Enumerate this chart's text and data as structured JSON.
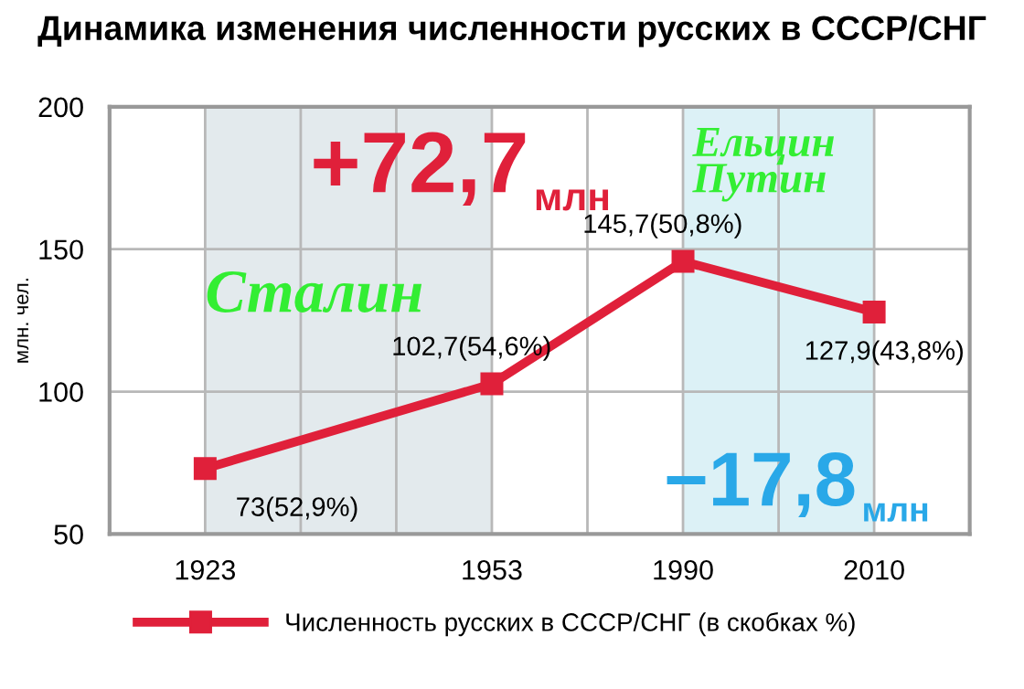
{
  "chart_data": {
    "type": "line",
    "title": "Динамика изменения численности русских в СССР/СНГ",
    "ylabel": "млн. чел.",
    "categories": [
      "1923",
      null,
      null,
      "1953",
      null,
      "1990",
      null,
      "2010"
    ],
    "series": [
      {
        "name": "Численность русских в СССР/СНГ (в скобках %)",
        "color": "#e0203a",
        "values": [
          73,
          null,
          null,
          102.7,
          null,
          145.7,
          null,
          127.9
        ],
        "value_labels": [
          "73(52,9%)",
          null,
          null,
          "102,7(54,6%)",
          null,
          "145,7(50,8%)",
          null,
          "127,9(43,8%)"
        ]
      }
    ],
    "ylim": [
      50,
      200
    ],
    "yticks": [
      50,
      100,
      150,
      200
    ],
    "grid": true,
    "legend": "bottom",
    "marker": "square",
    "line_style": "solid",
    "bands": [
      {
        "axis": "x",
        "from": "1923",
        "to": "1953",
        "color": "#e3eaed"
      },
      {
        "axis": "x",
        "from": "1990",
        "to": "2010",
        "color": "#dcf1f6"
      }
    ],
    "annotations": [
      "+72,7млн",
      "Сталин",
      "Ельцин\nПутин",
      "−17,8млн"
    ]
  }
}
